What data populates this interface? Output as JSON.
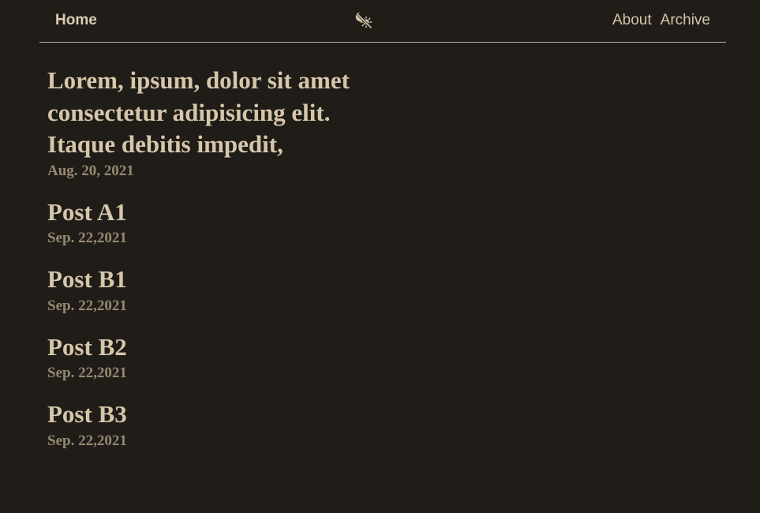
{
  "nav": {
    "home_label": "Home",
    "theme_toggle_icon": "moon-sun-toggle-icon",
    "links": [
      "About",
      "Archive"
    ]
  },
  "posts": [
    {
      "title": "Lorem, ipsum, dolor sit amet consectetur adipisicing elit. Itaque debitis impedit,",
      "date": "Aug. 20, 2021"
    },
    {
      "title": "Post A1",
      "date": "Sep. 22,2021"
    },
    {
      "title": "Post B1",
      "date": "Sep. 22,2021"
    },
    {
      "title": "Post B2",
      "date": "Sep. 22,2021"
    },
    {
      "title": "Post B3",
      "date": "Sep. 22,2021"
    }
  ],
  "colors": {
    "background": "#201d19",
    "text": "#d4c5a9",
    "date": "#968872",
    "divider": "#b9b2a5"
  }
}
